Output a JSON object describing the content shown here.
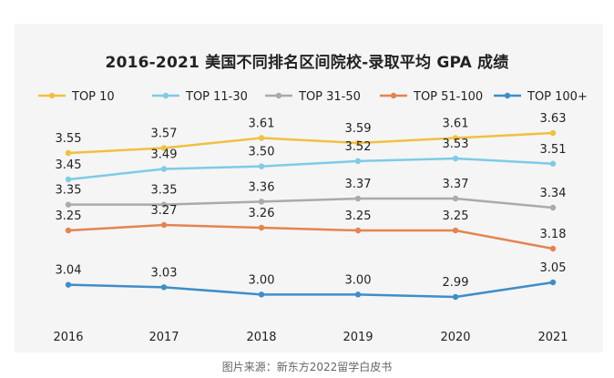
{
  "colors": {
    "top10": "#f0c040",
    "top11_30": "#7ecbe6",
    "top31_50": "#aaaaaa",
    "top51_100": "#e58451",
    "top100plus": "#3f8ec8",
    "background": "#f5f5f5"
  },
  "chart_data": {
    "type": "line",
    "title": "2016-2021 美国不同排名区间院校-录取平均 GPA 成绩",
    "x": [
      "2016",
      "2017",
      "2018",
      "2019",
      "2020",
      "2021"
    ],
    "series": [
      {
        "name": "TOP 10",
        "values": [
          3.55,
          3.57,
          3.61,
          3.59,
          3.61,
          3.63
        ],
        "labels": [
          "3.55",
          "3.57",
          "3.61",
          "3.59",
          "3.61",
          "3.63"
        ]
      },
      {
        "name": "TOP 11-30",
        "values": [
          3.45,
          3.49,
          3.5,
          3.52,
          3.53,
          3.51
        ],
        "labels": [
          "3.45",
          "3.49",
          "3.50",
          "3.52",
          "3.53",
          "3.51"
        ]
      },
      {
        "name": "TOP 31-50",
        "values": [
          3.35,
          3.35,
          3.36,
          3.37,
          3.37,
          3.34
        ],
        "labels": [
          "3.35",
          "3.35",
          "3.36",
          "3.37",
          "3.37",
          "3.34"
        ]
      },
      {
        "name": "TOP 51-100",
        "values": [
          3.25,
          3.27,
          3.26,
          3.25,
          3.25,
          3.18
        ],
        "labels": [
          "3.25",
          "3.27",
          "3.26",
          "3.25",
          "3.25",
          "3.18"
        ]
      },
      {
        "name": "TOP 100+",
        "values": [
          3.04,
          3.03,
          3.0,
          3.0,
          2.99,
          3.05
        ],
        "labels": [
          "3.04",
          "3.03",
          "3.00",
          "3.00",
          "2.99",
          "3.05"
        ]
      }
    ],
    "xlabel": "",
    "ylabel": "",
    "grid": false,
    "legend_position": "top"
  },
  "footer": {
    "source": "图片来源：新东方2022留学白皮书"
  }
}
